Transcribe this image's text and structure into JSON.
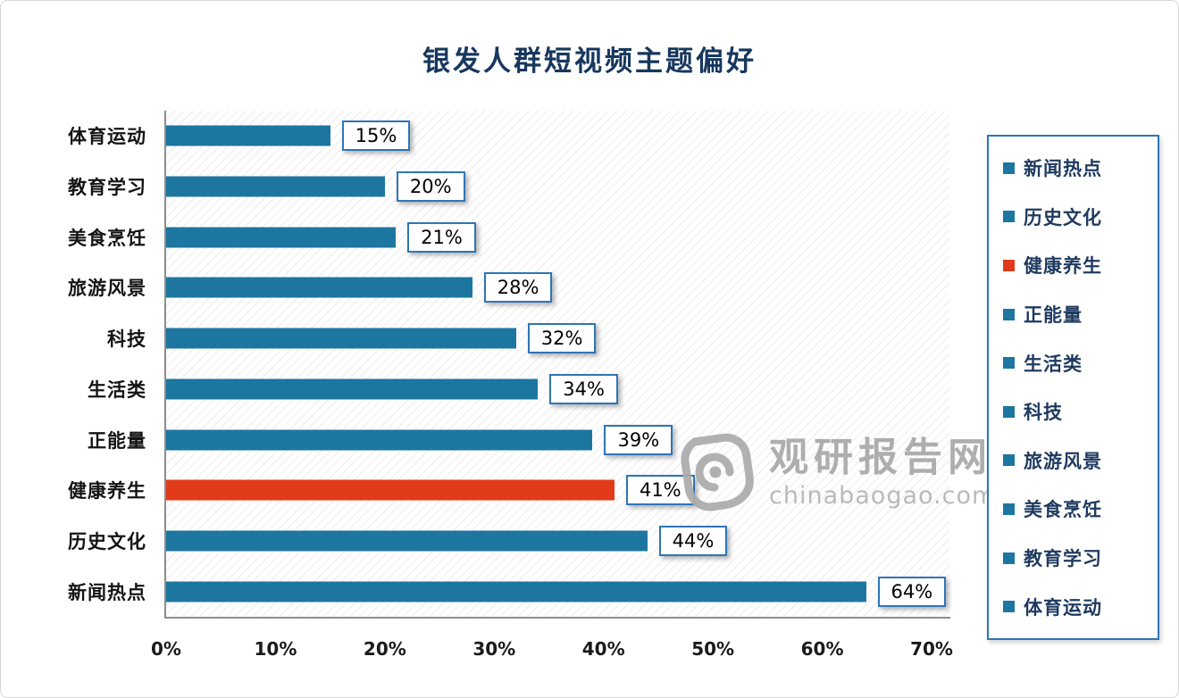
{
  "title": "银发人群短视频主题偏好",
  "watermark": {
    "name": "观研报告网",
    "domain": "chinabaogao.com"
  },
  "chart_data": {
    "type": "bar",
    "orientation": "horizontal",
    "title": "银发人群短视频主题偏好",
    "categories": [
      "体育运动",
      "教育学习",
      "美食烹饪",
      "旅游风景",
      "科技",
      "生活类",
      "正能量",
      "健康养生",
      "历史文化",
      "新闻热点"
    ],
    "values": [
      15,
      20,
      21,
      28,
      32,
      34,
      39,
      41,
      44,
      64
    ],
    "value_labels": [
      "15%",
      "20%",
      "21%",
      "28%",
      "32%",
      "34%",
      "39%",
      "41%",
      "44%",
      "64%"
    ],
    "xlim": [
      0,
      70
    ],
    "x_ticks": [
      "0%",
      "10%",
      "20%",
      "30%",
      "40%",
      "50%",
      "60%",
      "70%"
    ],
    "grid": "hatch-background",
    "highlight_index": 7,
    "colors": {
      "bar": "#1c76a0",
      "highlight": "#e13a1a",
      "label_box_border": "#2e75b6",
      "title": "#17375e"
    },
    "legend_position": "right",
    "legend": [
      {
        "label": "新闻热点",
        "color": "#1c76a0"
      },
      {
        "label": "历史文化",
        "color": "#1c76a0"
      },
      {
        "label": "健康养生",
        "color": "#e13a1a"
      },
      {
        "label": "正能量",
        "color": "#1c76a0"
      },
      {
        "label": "生活类",
        "color": "#1c76a0"
      },
      {
        "label": "科技",
        "color": "#1c76a0"
      },
      {
        "label": "旅游风景",
        "color": "#1c76a0"
      },
      {
        "label": "美食烹饪",
        "color": "#1c76a0"
      },
      {
        "label": "教育学习",
        "color": "#1c76a0"
      },
      {
        "label": "体育运动",
        "color": "#1c76a0"
      }
    ]
  }
}
